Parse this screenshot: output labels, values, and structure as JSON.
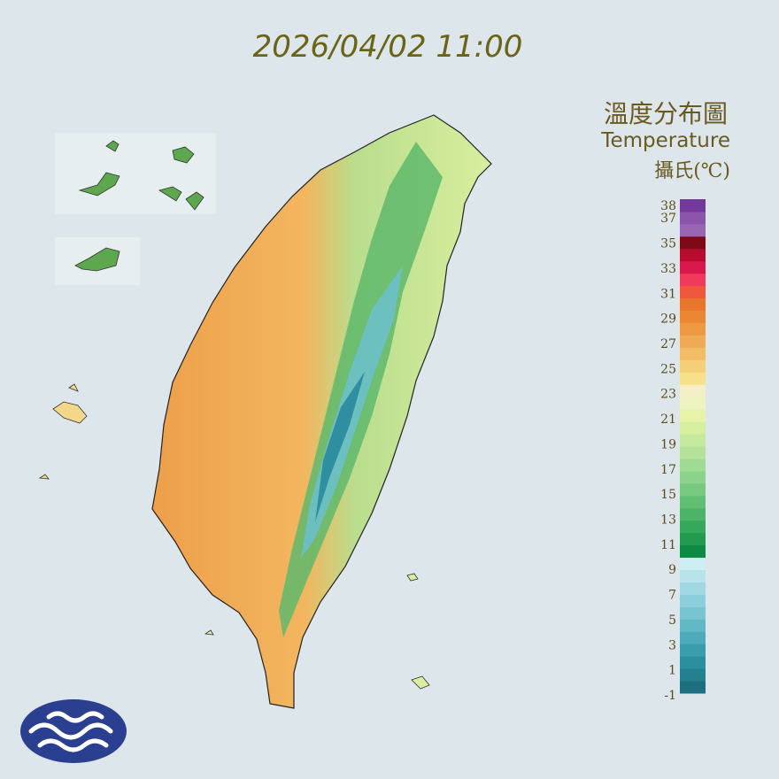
{
  "header": {
    "datetime": "2026/04/02 11:00"
  },
  "legend": {
    "title": "溫度分布圖",
    "subtitle": "Temperature",
    "unit": "攝氏(℃)",
    "ticks": [
      38,
      37,
      35,
      33,
      31,
      29,
      27,
      25,
      23,
      21,
      19,
      17,
      15,
      13,
      11,
      9,
      7,
      5,
      3,
      1,
      -1
    ],
    "colors": [
      "#1d6f80",
      "#22808f",
      "#2a8f9e",
      "#3a9dac",
      "#4eabb9",
      "#63b8c6",
      "#78c4d1",
      "#8dcedb",
      "#a2d8e3",
      "#b9e3eb",
      "#cdeef3",
      "#0e8a44",
      "#229a4f",
      "#36a85b",
      "#4bb467",
      "#60bf73",
      "#76c97f",
      "#8bd28a",
      "#a0db93",
      "#b4e29a",
      "#c5e99e",
      "#d6ef9f",
      "#e6f3a8",
      "#eef3c2",
      "#f5efc8",
      "#f6e08a",
      "#f4cf78",
      "#f2bc66",
      "#f0aa55",
      "#ed9944",
      "#eb8733",
      "#e8762a",
      "#f0583e",
      "#f03a5c",
      "#d8184c",
      "#b80c2e",
      "#7e0a18",
      "#9a66b4",
      "#8a55aa",
      "#733a9c"
    ]
  }
}
